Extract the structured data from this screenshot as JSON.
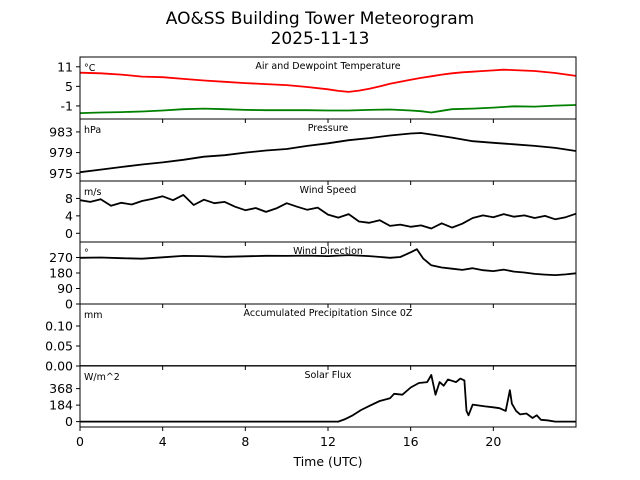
{
  "title": "AO&SS Building Tower Meteorogram",
  "subtitle": "2025-11-13",
  "xlabel": "Time (UTC)",
  "chart_data": {
    "type": "line",
    "x_unit": "hours UTC",
    "x_range": [
      0,
      24
    ],
    "x_ticks": [
      0,
      4,
      8,
      12,
      16,
      20
    ],
    "panels": [
      {
        "id": "temp",
        "title": "Air and Dewpoint Temperature",
        "unit": "°C",
        "ylim": [
          -5,
          14
        ],
        "yticks": [
          11,
          5,
          -1
        ],
        "series": [
          {
            "name": "Air Temperature",
            "color": "#ff0000",
            "x": [
              0,
              1,
              2,
              3,
              4,
              5,
              6,
              7,
              8,
              9,
              10,
              11,
              12,
              12.5,
              13,
              13.5,
              14,
              14.5,
              15,
              15.5,
              16,
              16.5,
              17,
              17.5,
              18,
              18.5,
              19,
              19.5,
              20,
              20.5,
              21,
              22,
              23,
              24
            ],
            "y": [
              9.2,
              9.0,
              8.6,
              8.0,
              7.8,
              7.3,
              6.8,
              6.4,
              6.0,
              5.7,
              5.4,
              4.8,
              4.1,
              3.6,
              3.3,
              3.7,
              4.3,
              5.0,
              5.8,
              6.4,
              7.0,
              7.6,
              8.1,
              8.6,
              9.0,
              9.3,
              9.5,
              9.7,
              9.9,
              10.1,
              10.0,
              9.7,
              9.1,
              8.2
            ]
          },
          {
            "name": "Dewpoint",
            "color": "#008000",
            "x": [
              0,
              1,
              2,
              3,
              4,
              5,
              6,
              7,
              8,
              9,
              10,
              11,
              12,
              13,
              14,
              15,
              16,
              16.5,
              17,
              17.5,
              18,
              19,
              20,
              21,
              22,
              23,
              24
            ],
            "y": [
              -3.2,
              -3.0,
              -2.9,
              -2.7,
              -2.4,
              -2.0,
              -1.8,
              -2.0,
              -2.2,
              -2.3,
              -2.3,
              -2.3,
              -2.4,
              -2.4,
              -2.2,
              -2.1,
              -2.4,
              -2.6,
              -3.0,
              -2.5,
              -2.0,
              -1.8,
              -1.5,
              -1.1,
              -1.2,
              -0.9,
              -0.7
            ]
          }
        ]
      },
      {
        "id": "pressure",
        "title": "Pressure",
        "unit": "hPa",
        "ylim": [
          973.5,
          985.5
        ],
        "yticks": [
          983,
          979,
          975
        ],
        "series": [
          {
            "name": "Pressure",
            "color": "#000000",
            "x": [
              0,
              1,
              2,
              3,
              4,
              5,
              6,
              7,
              8,
              9,
              10,
              11,
              12,
              13,
              14,
              15,
              16,
              16.5,
              17,
              18,
              19,
              20,
              21,
              22,
              23,
              24
            ],
            "y": [
              975.2,
              975.7,
              976.2,
              976.7,
              977.1,
              977.6,
              978.2,
              978.5,
              979.0,
              979.4,
              979.7,
              980.3,
              980.8,
              981.4,
              981.8,
              982.3,
              982.7,
              982.8,
              982.5,
              981.9,
              981.2,
              980.9,
              980.6,
              980.3,
              979.9,
              979.3
            ]
          }
        ]
      },
      {
        "id": "wind_speed",
        "title": "Wind Speed",
        "unit": "m/s",
        "ylim": [
          -2,
          12
        ],
        "yticks": [
          8,
          4,
          0
        ],
        "series": [
          {
            "name": "Wind Speed",
            "color": "#000000",
            "x": [
              0,
              0.5,
              1,
              1.5,
              2,
              2.5,
              3,
              3.5,
              4,
              4.5,
              5,
              5.5,
              6,
              6.5,
              7,
              7.5,
              8,
              8.5,
              9,
              9.5,
              10,
              10.5,
              11,
              11.5,
              12,
              12.5,
              13,
              13.5,
              14,
              14.5,
              15,
              15.5,
              16,
              16.5,
              17,
              17.5,
              18,
              18.5,
              19,
              19.5,
              20,
              20.5,
              21,
              21.5,
              22,
              22.5,
              23,
              23.5,
              24
            ],
            "y": [
              7.6,
              7.2,
              7.8,
              6.3,
              7.0,
              6.6,
              7.4,
              7.9,
              8.5,
              7.6,
              8.8,
              6.5,
              7.7,
              6.9,
              7.2,
              6.1,
              5.3,
              5.8,
              4.9,
              5.7,
              6.9,
              6.1,
              5.4,
              5.9,
              4.3,
              3.6,
              4.4,
              2.7,
              2.4,
              3.0,
              1.7,
              2.0,
              1.5,
              1.8,
              1.1,
              2.3,
              1.3,
              2.2,
              3.5,
              4.1,
              3.7,
              4.4,
              3.8,
              4.1,
              3.5,
              4.0,
              3.2,
              3.7,
              4.5
            ]
          }
        ]
      },
      {
        "id": "wind_dir",
        "title": "Wind Direction",
        "unit": "°",
        "ylim": [
          0,
          360
        ],
        "yticks": [
          270,
          180,
          90,
          0
        ],
        "series": [
          {
            "name": "Wind Direction",
            "color": "#000000",
            "x": [
              0,
              1,
              2,
              3,
              4,
              5,
              6,
              7,
              8,
              9,
              10,
              11,
              12,
              13,
              14,
              15,
              15.5,
              16,
              16.3,
              16.6,
              17,
              17.5,
              18,
              18.5,
              19,
              19.5,
              20,
              20.5,
              21,
              21.5,
              22,
              22.5,
              23,
              23.5,
              24
            ],
            "y": [
              268,
              270,
              266,
              263,
              271,
              279,
              278,
              274,
              277,
              280,
              279,
              281,
              278,
              284,
              278,
              268,
              273,
              300,
              318,
              265,
              225,
              212,
              205,
              198,
              208,
              196,
              191,
              200,
              188,
              183,
              175,
              171,
              168,
              172,
              178
            ]
          }
        ]
      },
      {
        "id": "precip",
        "title": "Accumulated Precipitation Since 0Z",
        "unit": "mm",
        "ylim": [
          0,
          0.155
        ],
        "yticks": [
          0.1,
          0.05,
          0.0
        ],
        "series": [
          {
            "name": "Accumulated Precipitation",
            "color": "#000000",
            "x": [
              0,
              24
            ],
            "y": [
              0,
              0
            ]
          }
        ]
      },
      {
        "id": "solar",
        "title": "Solar Flux",
        "unit": "W/m^2",
        "ylim": [
          -60,
          620
        ],
        "yticks": [
          368,
          184,
          0
        ],
        "series": [
          {
            "name": "Solar Flux",
            "color": "#000000",
            "x": [
              0,
              12.5,
              12.8,
              13.2,
              13.6,
              14,
              14.5,
              15,
              15.2,
              15.6,
              16,
              16.4,
              16.8,
              17,
              17.2,
              17.4,
              17.6,
              17.8,
              18,
              18.2,
              18.4,
              18.6,
              18.7,
              18.8,
              19,
              19.3,
              19.6,
              20,
              20.3,
              20.6,
              20.8,
              20.9,
              21.1,
              21.3,
              21.6,
              21.9,
              22.1,
              22.3,
              22.6,
              23,
              24
            ],
            "y": [
              0,
              0,
              25,
              70,
              130,
              175,
              230,
              260,
              310,
              300,
              380,
              430,
              440,
              520,
              300,
              440,
              400,
              470,
              455,
              440,
              480,
              460,
              120,
              70,
              190,
              180,
              170,
              160,
              150,
              120,
              350,
              200,
              120,
              80,
              90,
              40,
              70,
              20,
              15,
              0,
              0
            ]
          }
        ]
      }
    ]
  }
}
